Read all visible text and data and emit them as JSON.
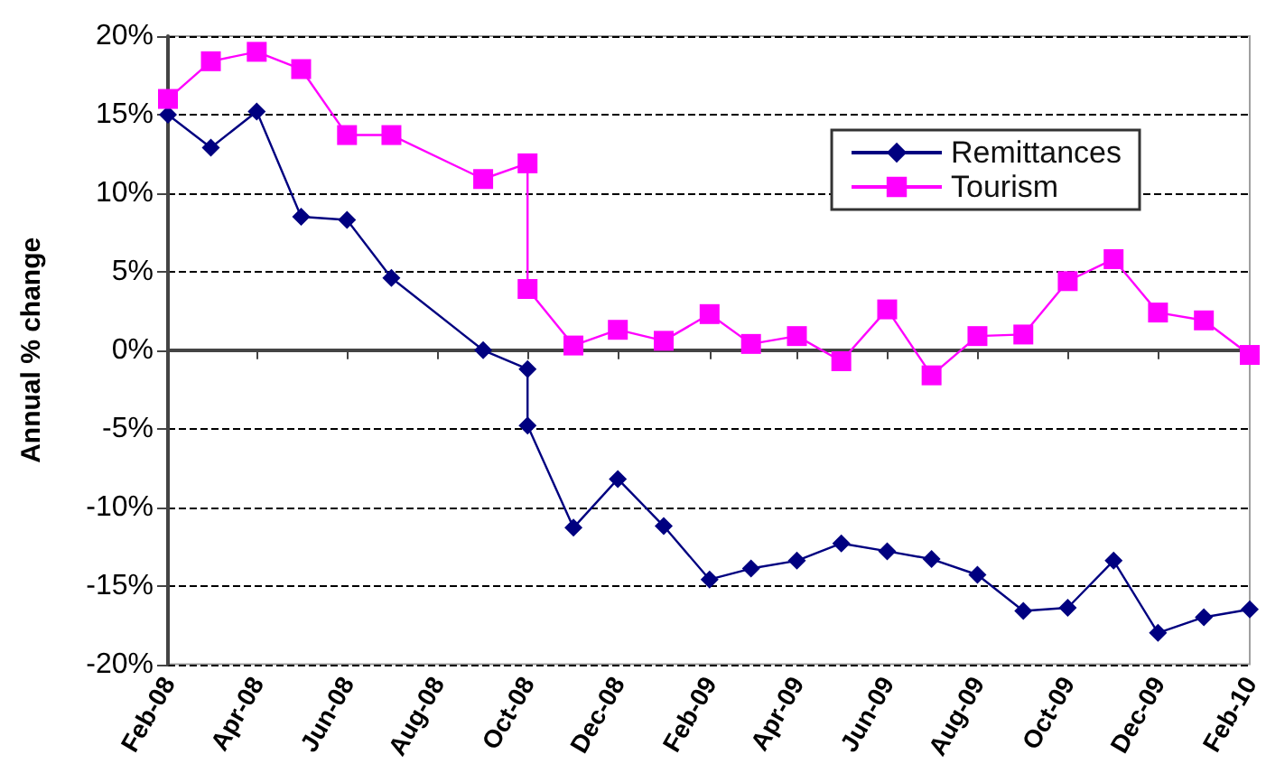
{
  "chart_data": {
    "type": "line",
    "ylabel": "Annual % change",
    "xlim": [
      "2008-02",
      "2010-02"
    ],
    "xticks": [
      {
        "value": "2008-02",
        "label": "Feb-08"
      },
      {
        "value": "2008-04",
        "label": "Apr-08"
      },
      {
        "value": "2008-06",
        "label": "Jun-08"
      },
      {
        "value": "2008-08",
        "label": "Aug-08"
      },
      {
        "value": "2008-10",
        "label": "Oct-08"
      },
      {
        "value": "2008-12",
        "label": "Dec-08"
      },
      {
        "value": "2009-02",
        "label": "Feb-09"
      },
      {
        "value": "2009-04",
        "label": "Apr-09"
      },
      {
        "value": "2009-06",
        "label": "Jun-09"
      },
      {
        "value": "2009-08",
        "label": "Aug-09"
      },
      {
        "value": "2009-10",
        "label": "Oct-09"
      },
      {
        "value": "2009-12",
        "label": "Dec-09"
      },
      {
        "value": "2010-02",
        "label": "Feb-10"
      }
    ],
    "ylim": [
      -20,
      20
    ],
    "yticks": [
      {
        "value": -20,
        "label": "-20%"
      },
      {
        "value": -15,
        "label": "-15%"
      },
      {
        "value": -10,
        "label": "-10%"
      },
      {
        "value": -5,
        "label": "-5%"
      },
      {
        "value": 0,
        "label": "0%"
      },
      {
        "value": 5,
        "label": "5%"
      },
      {
        "value": 10,
        "label": "10%"
      },
      {
        "value": 15,
        "label": "15%"
      },
      {
        "value": 20,
        "label": "20%"
      }
    ],
    "grid": "y",
    "legend": "top right",
    "line_style": "solid",
    "series": [
      {
        "name": "Remittances",
        "color": "#000080",
        "marker": "diamond",
        "x": [
          "2008-02",
          "2008-03",
          "2008-04",
          "2008-05",
          "2008-06",
          "2008-07",
          "2008-09",
          "2008-10",
          "2008-10",
          "2008-11",
          "2008-12",
          "2009-01",
          "2009-02",
          "2009-03",
          "2009-04",
          "2009-05",
          "2009-06",
          "2009-07",
          "2009-08",
          "2009-09",
          "2009-10",
          "2009-11",
          "2009-12",
          "2010-01",
          "2010-02"
        ],
        "values": [
          15.0,
          12.9,
          15.2,
          8.5,
          8.3,
          4.6,
          0.0,
          -1.2,
          -4.8,
          -11.3,
          -8.2,
          -11.2,
          -14.6,
          -13.9,
          -13.4,
          -12.3,
          -12.8,
          -13.3,
          -14.3,
          -16.6,
          -16.4,
          -13.4,
          -18.0,
          -17.0,
          -16.5
        ]
      },
      {
        "name": "Tourism",
        "color": "#ff00ff",
        "marker": "square",
        "x": [
          "2008-02",
          "2008-03",
          "2008-04",
          "2008-05",
          "2008-06",
          "2008-07",
          "2008-09",
          "2008-10",
          "2008-10",
          "2008-11",
          "2008-12",
          "2009-01",
          "2009-02",
          "2009-03",
          "2009-04",
          "2009-05",
          "2009-06",
          "2009-07",
          "2009-08",
          "2009-09",
          "2009-10",
          "2009-11",
          "2009-12",
          "2010-01",
          "2010-02"
        ],
        "values": [
          16.0,
          18.4,
          19.0,
          17.9,
          13.7,
          13.7,
          10.9,
          11.9,
          3.9,
          0.3,
          1.3,
          0.6,
          2.3,
          0.4,
          0.9,
          -0.7,
          2.6,
          -1.6,
          0.9,
          1.0,
          4.4,
          5.8,
          2.4,
          1.9,
          -0.3
        ]
      }
    ]
  }
}
